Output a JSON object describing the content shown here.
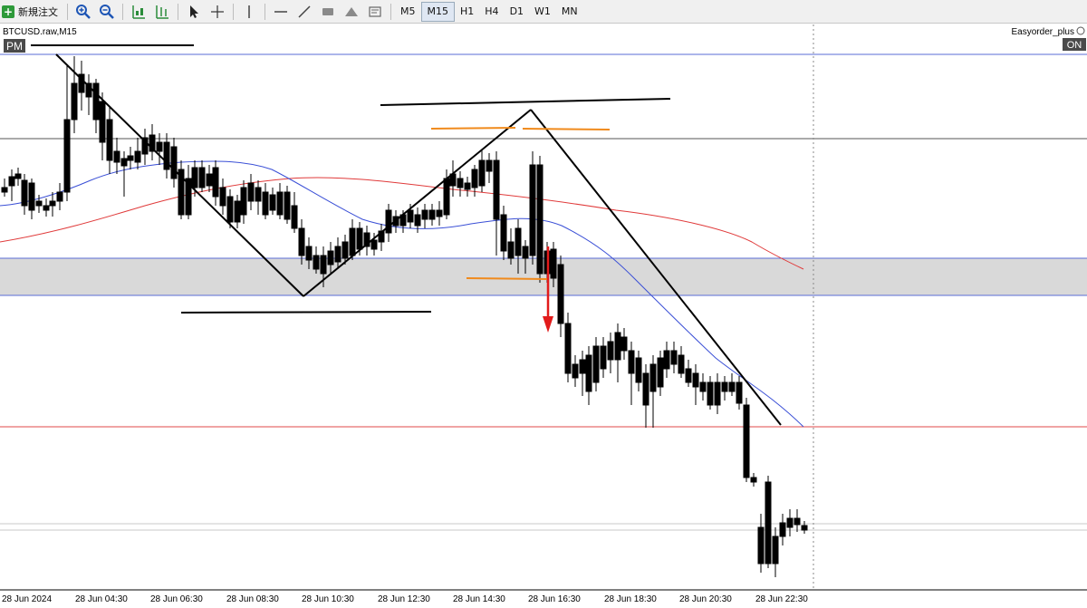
{
  "toolbar": {
    "new_order_label": "新規注文",
    "tools": [
      {
        "name": "zoom-in-icon"
      },
      {
        "name": "zoom-out-icon"
      },
      {
        "name": "chart-grid-icon"
      },
      {
        "name": "chart-period-icon"
      },
      {
        "name": "cursor-icon"
      },
      {
        "name": "crosshair-icon"
      },
      {
        "name": "vertical-line-icon"
      },
      {
        "name": "horizontal-line-icon"
      },
      {
        "name": "trend-line-icon"
      },
      {
        "name": "rectangle-icon"
      },
      {
        "name": "triangle-icon"
      },
      {
        "name": "text-icon"
      }
    ],
    "timeframes": [
      {
        "label": "M5",
        "active": false
      },
      {
        "label": "M15",
        "active": true
      },
      {
        "label": "H1",
        "active": false
      },
      {
        "label": "H4",
        "active": false
      },
      {
        "label": "D1",
        "active": false
      },
      {
        "label": "W1",
        "active": false
      },
      {
        "label": "MN",
        "active": false
      }
    ]
  },
  "chart": {
    "symbol_label": "BTCUSD.raw,M15",
    "pm_label": "PM",
    "ea_label": "Easyorder_plus",
    "on_label": "ON",
    "x_labels": [
      "28 Jun 2024",
      "28 Jun 04:30",
      "28 Jun 06:30",
      "28 Jun 08:30",
      "28 Jun 10:30",
      "28 Jun 12:30",
      "28 Jun 14:30",
      "28 Jun 16:30",
      "28 Jun 18:30",
      "28 Jun 20:30",
      "28 Jun 22:30"
    ],
    "colors": {
      "blue_ma": "#3a4fd6",
      "red_ma": "#e03a3a",
      "zone_fill": "#d9d9d9",
      "orange": "#f08a1c",
      "arrow": "#e21b1b"
    }
  }
}
